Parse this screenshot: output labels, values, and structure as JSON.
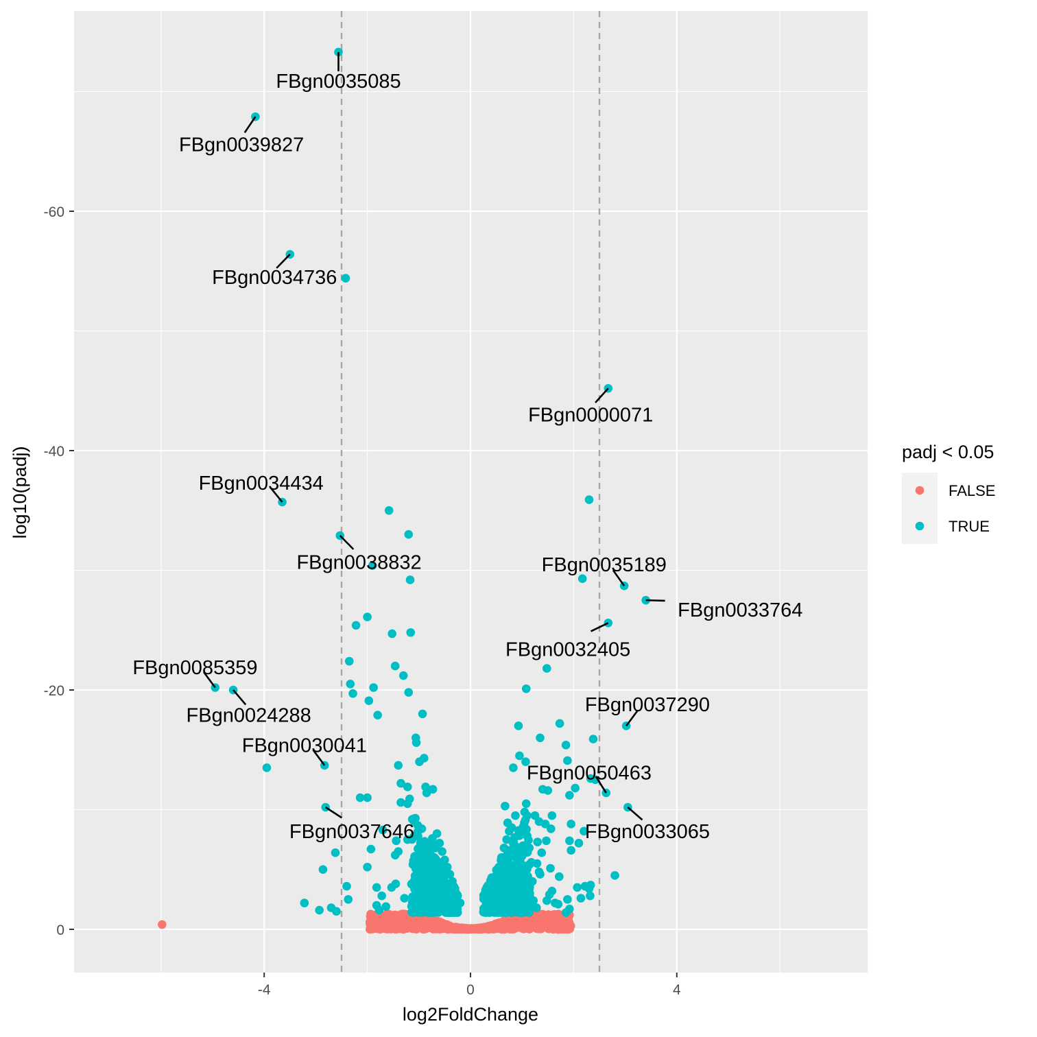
{
  "chart_data": {
    "type": "scatter",
    "title": "",
    "xlabel": "log2FoldChange",
    "ylabel": "log10(padj)",
    "xlim": [
      -7.7,
      7.7
    ],
    "ylim": [
      3.6,
      -77.2
    ],
    "x_ticks": [
      -4,
      0,
      4
    ],
    "x_tick_labels": [
      "-4",
      "0",
      "4"
    ],
    "y_ticks": [
      -60,
      -40,
      -20,
      0
    ],
    "y_tick_labels": [
      "-60",
      "-40",
      "-20",
      "0"
    ],
    "vlines": [
      -2.5,
      2.5
    ],
    "grid": true,
    "legend": {
      "title": "padj < 0.05",
      "position": "right",
      "entries": [
        {
          "label": "FALSE",
          "color": "#F8766D"
        },
        {
          "label": "TRUE",
          "color": "#00BFC4"
        }
      ]
    },
    "series": [
      {
        "name": "FALSE",
        "color": "#F8766D",
        "points": [
          [
            -5.98,
            -0.4
          ],
          [
            -1.95,
            0.0
          ],
          [
            1.92,
            -1.2
          ]
        ]
      },
      {
        "name": "TRUE",
        "color": "#00BFC4",
        "points": [
          [
            -2.56,
            -73.3
          ],
          [
            -4.17,
            -67.9
          ],
          [
            -3.5,
            -56.4
          ],
          [
            -2.42,
            -54.4
          ],
          [
            2.67,
            -45.2
          ],
          [
            -3.65,
            -35.7
          ],
          [
            -1.58,
            -35.0
          ],
          [
            -2.53,
            -32.9
          ],
          [
            -1.2,
            -33.0
          ],
          [
            -1.9,
            -30.4
          ],
          [
            -1.17,
            -29.2
          ],
          [
            2.3,
            -35.9
          ],
          [
            2.17,
            -29.3
          ],
          [
            2.98,
            -28.7
          ],
          [
            3.4,
            -27.5
          ],
          [
            2.67,
            -25.6
          ],
          [
            -2.22,
            -25.4
          ],
          [
            -2.0,
            -26.1
          ],
          [
            -1.52,
            -24.7
          ],
          [
            -1.16,
            -24.8
          ],
          [
            1.48,
            -21.8
          ],
          [
            -2.35,
            -22.4
          ],
          [
            -1.46,
            -22.0
          ],
          [
            -1.3,
            -21.2
          ],
          [
            -4.95,
            -20.2
          ],
          [
            -4.6,
            -20.0
          ],
          [
            -2.33,
            -20.5
          ],
          [
            -1.88,
            -20.2
          ],
          [
            -2.28,
            -19.7
          ],
          [
            -1.97,
            -19.1
          ],
          [
            -1.8,
            -17.9
          ],
          [
            -1.2,
            -19.8
          ],
          [
            -0.93,
            -18.0
          ],
          [
            1.08,
            -20.1
          ],
          [
            0.93,
            -17.0
          ],
          [
            1.73,
            -17.2
          ],
          [
            3.02,
            -17.0
          ],
          [
            -1.06,
            -16.0
          ],
          [
            -1.05,
            -15.6
          ],
          [
            1.35,
            -16.0
          ],
          [
            2.38,
            -15.9
          ],
          [
            1.85,
            -15.4
          ],
          [
            -3.95,
            -13.5
          ],
          [
            -2.83,
            -13.7
          ],
          [
            -1.4,
            -13.7
          ],
          [
            -0.9,
            -14.3
          ],
          [
            -0.99,
            -14.0
          ],
          [
            0.95,
            -14.5
          ],
          [
            1.07,
            -14.0
          ],
          [
            1.88,
            -14.1
          ],
          [
            0.83,
            -13.5
          ],
          [
            -1.35,
            -12.2
          ],
          [
            -1.22,
            -11.9
          ],
          [
            -0.87,
            -11.9
          ],
          [
            -0.73,
            -11.7
          ],
          [
            2.33,
            -12.6
          ],
          [
            2.42,
            -12.5
          ],
          [
            2.63,
            -11.4
          ],
          [
            1.4,
            -11.7
          ],
          [
            1.5,
            -11.6
          ],
          [
            2.03,
            -11.8
          ],
          [
            -2.14,
            -11.0
          ],
          [
            -2.0,
            -11.0
          ],
          [
            -1.22,
            -10.5
          ],
          [
            -1.18,
            -10.9
          ],
          [
            -0.85,
            -11.4
          ],
          [
            0.67,
            -10.3
          ],
          [
            1.08,
            -10.5
          ],
          [
            1.92,
            -11.2
          ],
          [
            -2.81,
            -10.2
          ],
          [
            -1.35,
            -10.6
          ],
          [
            3.05,
            -10.2
          ],
          [
            0.87,
            -9.5
          ],
          [
            1.05,
            -9.8
          ],
          [
            1.25,
            -9.5
          ],
          [
            1.58,
            -9.5
          ],
          [
            0.72,
            -8.9
          ],
          [
            0.8,
            -8.5
          ],
          [
            1.33,
            -9.0
          ],
          [
            1.45,
            -8.8
          ],
          [
            1.56,
            -8.4
          ],
          [
            1.95,
            -8.8
          ],
          [
            2.2,
            -8.2
          ],
          [
            -1.7,
            -8.3
          ],
          [
            -1.22,
            -7.5
          ],
          [
            -0.97,
            -7.2
          ],
          [
            -1.44,
            -7.4
          ],
          [
            -0.7,
            -7.0
          ],
          [
            1.1,
            -7.8
          ],
          [
            1.3,
            -7.3
          ],
          [
            1.47,
            -7.4
          ],
          [
            1.92,
            -7.4
          ],
          [
            2.1,
            -7.2
          ],
          [
            -1.93,
            -6.7
          ],
          [
            -1.4,
            -6.5
          ],
          [
            -1.46,
            -6.2
          ],
          [
            -1.0,
            -6.1
          ],
          [
            1.14,
            -6.8
          ],
          [
            1.38,
            -6.4
          ],
          [
            1.95,
            -6.6
          ],
          [
            -2.62,
            -6.4
          ],
          [
            -1.04,
            -5.5
          ],
          [
            -0.92,
            -5.2
          ],
          [
            -0.8,
            -5.0
          ],
          [
            0.98,
            -5.5
          ],
          [
            1.29,
            -5.5
          ],
          [
            -2.86,
            -5.0
          ],
          [
            -2.0,
            -5.2
          ],
          [
            1.33,
            -4.8
          ],
          [
            1.35,
            -4.6
          ],
          [
            1.72,
            -4.4
          ],
          [
            1.55,
            -5.1
          ],
          [
            2.22,
            -3.6
          ],
          [
            2.33,
            -3.7
          ],
          [
            2.8,
            -4.5
          ],
          [
            -1.45,
            -3.8
          ],
          [
            -0.96,
            -4.1
          ],
          [
            -1.53,
            -3.5
          ],
          [
            -0.75,
            -3.5
          ],
          [
            1.58,
            -3.2
          ],
          [
            2.07,
            -3.5
          ],
          [
            2.3,
            -3.4
          ],
          [
            -2.4,
            -3.6
          ],
          [
            -1.82,
            -3.5
          ],
          [
            -1.72,
            -2.8
          ],
          [
            -0.88,
            -3.0
          ],
          [
            1.53,
            -2.9
          ],
          [
            1.64,
            -2.2
          ],
          [
            2.32,
            -2.8
          ],
          [
            -3.22,
            -2.2
          ],
          [
            -2.37,
            -2.5
          ],
          [
            -1.28,
            -2.6
          ],
          [
            -1.82,
            -2.0
          ],
          [
            -1.64,
            -1.9
          ],
          [
            1.7,
            -2.1
          ],
          [
            1.88,
            -2.5
          ],
          [
            1.48,
            -2.4
          ],
          [
            2.14,
            -2.6
          ],
          [
            -2.93,
            -1.6
          ],
          [
            -2.7,
            -1.8
          ],
          [
            -2.6,
            -1.5
          ],
          [
            -1.77,
            -1.6
          ],
          [
            1.85,
            -1.4
          ],
          [
            1.92,
            -1.7
          ],
          [
            -0.65,
            -8.0
          ],
          [
            -0.6,
            -7.2
          ],
          [
            -0.55,
            -6.5
          ],
          [
            -0.5,
            -5.8
          ],
          [
            -0.45,
            -5.2
          ],
          [
            -0.4,
            -4.6
          ],
          [
            -0.35,
            -4.0
          ],
          [
            -0.3,
            -3.4
          ],
          [
            -0.25,
            -2.8
          ],
          [
            -0.2,
            -2.2
          ],
          [
            -0.7,
            -6.0
          ],
          [
            -0.66,
            -5.0
          ],
          [
            -0.62,
            -4.2
          ],
          [
            -0.58,
            -3.4
          ],
          [
            -0.54,
            -2.7
          ],
          [
            -0.76,
            -4.5
          ],
          [
            -0.72,
            -3.6
          ],
          [
            -0.68,
            -2.9
          ],
          [
            -0.82,
            -3.2
          ],
          [
            -0.8,
            -2.4
          ],
          [
            -0.86,
            -2.0
          ],
          [
            -0.9,
            -2.6
          ],
          [
            -0.95,
            -3.6
          ],
          [
            -1.0,
            -2.3
          ],
          [
            -0.6,
            -2.3
          ],
          [
            -0.5,
            -2.0
          ],
          [
            -0.42,
            -3.0
          ],
          [
            -0.48,
            -3.8
          ],
          [
            -0.56,
            -4.8
          ],
          [
            -0.63,
            -5.6
          ],
          [
            -0.68,
            -6.8
          ],
          [
            -0.74,
            -7.6
          ],
          [
            -0.78,
            -6.2
          ],
          [
            -0.84,
            -5.4
          ],
          [
            -0.88,
            -4.6
          ],
          [
            -0.93,
            -4.0
          ],
          [
            -0.4,
            -2.4
          ],
          [
            -0.35,
            -2.0
          ],
          [
            -0.3,
            -1.8
          ],
          [
            -0.46,
            -1.6
          ],
          [
            -0.72,
            -1.8
          ],
          [
            -0.64,
            -1.6
          ],
          [
            -0.94,
            -1.6
          ],
          [
            -1.04,
            -1.8
          ],
          [
            0.3,
            -2.0
          ],
          [
            0.35,
            -2.6
          ],
          [
            0.4,
            -3.2
          ],
          [
            0.45,
            -3.8
          ],
          [
            0.5,
            -4.5
          ],
          [
            0.55,
            -5.2
          ],
          [
            0.6,
            -6.0
          ],
          [
            0.65,
            -6.8
          ],
          [
            0.7,
            -7.5
          ],
          [
            0.75,
            -8.2
          ],
          [
            0.32,
            -1.6
          ],
          [
            0.42,
            -2.2
          ],
          [
            0.5,
            -2.8
          ],
          [
            0.58,
            -3.5
          ],
          [
            0.62,
            -4.2
          ],
          [
            0.68,
            -5.0
          ],
          [
            0.72,
            -5.8
          ],
          [
            0.78,
            -6.6
          ],
          [
            0.84,
            -7.2
          ],
          [
            0.88,
            -6.0
          ],
          [
            0.92,
            -5.0
          ],
          [
            0.96,
            -4.2
          ],
          [
            1.0,
            -3.4
          ],
          [
            1.05,
            -2.6
          ],
          [
            1.1,
            -2.0
          ],
          [
            0.8,
            -3.0
          ],
          [
            0.85,
            -2.4
          ],
          [
            0.9,
            -3.8
          ],
          [
            0.95,
            -2.0
          ],
          [
            1.15,
            -3.0
          ],
          [
            1.2,
            -4.0
          ],
          [
            1.22,
            -2.4
          ],
          [
            0.64,
            -2.6
          ],
          [
            0.74,
            -2.0
          ],
          [
            0.56,
            -1.8
          ],
          [
            0.86,
            -1.6
          ],
          [
            1.02,
            -1.7
          ],
          [
            1.12,
            -1.5
          ],
          [
            1.28,
            -1.8
          ],
          [
            0.46,
            -1.7
          ],
          [
            0.7,
            -3.6
          ],
          [
            0.76,
            -4.4
          ],
          [
            0.82,
            -5.2
          ],
          [
            0.66,
            -4.0
          ],
          [
            0.6,
            -3.0
          ],
          [
            0.98,
            -6.0
          ],
          [
            1.04,
            -5.0
          ],
          [
            1.18,
            -5.6
          ]
        ]
      }
    ],
    "annotations": [
      {
        "text": "FBgn0035085",
        "x": -2.56,
        "y": -73.3
      },
      {
        "text": "FBgn0039827",
        "x": -4.17,
        "y": -67.9
      },
      {
        "text": "FBgn0034736",
        "x": -3.5,
        "y": -56.4
      },
      {
        "text": "FBgn0000071",
        "x": 2.67,
        "y": -45.2
      },
      {
        "text": "FBgn0034434",
        "x": -3.65,
        "y": -35.7
      },
      {
        "text": "FBgn0038832",
        "x": -2.53,
        "y": -32.9
      },
      {
        "text": "FBgn0035189",
        "x": 2.98,
        "y": -28.7
      },
      {
        "text": "FBgn0033764",
        "x": 3.4,
        "y": -27.5
      },
      {
        "text": "FBgn0032405",
        "x": 2.67,
        "y": -25.6
      },
      {
        "text": "FBgn0085359",
        "x": -4.95,
        "y": -20.2
      },
      {
        "text": "FBgn0024288",
        "x": -4.6,
        "y": -20.0
      },
      {
        "text": "FBgn0037290",
        "x": 3.02,
        "y": -17.0
      },
      {
        "text": "FBgn0030041",
        "x": -2.83,
        "y": -13.7
      },
      {
        "text": "FBgn0050463",
        "x": 2.63,
        "y": -11.4
      },
      {
        "text": "FBgn0037646",
        "x": -2.81,
        "y": -10.2
      },
      {
        "text": "FBgn0033065",
        "x": 3.05,
        "y": -10.2
      }
    ]
  }
}
